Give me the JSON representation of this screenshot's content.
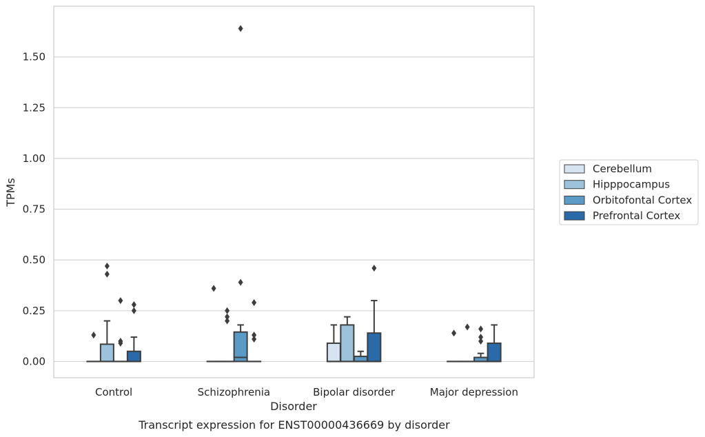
{
  "caption": "Transcript expression for ENST00000436669 by disorder",
  "chart_data": {
    "type": "box",
    "xlabel": "Disorder",
    "ylabel": "TPMs",
    "ylim": [
      -0.08,
      1.75
    ],
    "yticks": [
      0.0,
      0.25,
      0.5,
      0.75,
      1.0,
      1.25,
      1.5
    ],
    "ytick_labels": [
      "0.00",
      "0.25",
      "0.50",
      "0.75",
      "1.00",
      "1.25",
      "1.50"
    ],
    "grid": "horizontal",
    "legend_position": "right",
    "categories": [
      "Control",
      "Schizophrenia",
      "Bipolar disorder",
      "Major depression"
    ],
    "series": [
      {
        "name": "Cerebellum",
        "color": "#d6e3f0",
        "boxes": [
          {
            "category": "Control",
            "q1": 0,
            "median": 0,
            "q3": 0,
            "whisker_low": 0,
            "whisker_high": 0,
            "outliers": [
              0.13
            ]
          },
          {
            "category": "Schizophrenia",
            "q1": 0,
            "median": 0,
            "q3": 0,
            "whisker_low": 0,
            "whisker_high": 0,
            "outliers": [
              0.36
            ]
          },
          {
            "category": "Bipolar disorder",
            "q1": 0,
            "median": 0,
            "q3": 0.09,
            "whisker_low": 0,
            "whisker_high": 0.18,
            "outliers": []
          },
          {
            "category": "Major depression",
            "q1": 0,
            "median": 0,
            "q3": 0,
            "whisker_low": 0,
            "whisker_high": 0,
            "outliers": [
              0.14
            ]
          }
        ]
      },
      {
        "name": "Hipppocampus",
        "color": "#9cc3db",
        "boxes": [
          {
            "category": "Control",
            "q1": 0,
            "median": 0,
            "q3": 0.085,
            "whisker_low": 0,
            "whisker_high": 0.2,
            "outliers": [
              0.43,
              0.47
            ]
          },
          {
            "category": "Schizophrenia",
            "q1": 0,
            "median": 0,
            "q3": 0,
            "whisker_low": 0,
            "whisker_high": 0,
            "outliers": [
              0.2,
              0.22,
              0.25
            ]
          },
          {
            "category": "Bipolar disorder",
            "q1": 0,
            "median": 0,
            "q3": 0.18,
            "whisker_low": 0,
            "whisker_high": 0.22,
            "outliers": []
          },
          {
            "category": "Major depression",
            "q1": 0,
            "median": 0,
            "q3": 0,
            "whisker_low": 0,
            "whisker_high": 0,
            "outliers": [
              0.17
            ]
          }
        ]
      },
      {
        "name": "Orbitofontal Cortex",
        "color": "#5a9ac6",
        "boxes": [
          {
            "category": "Control",
            "q1": 0,
            "median": 0,
            "q3": 0,
            "whisker_low": 0,
            "whisker_high": 0,
            "outliers": [
              0.09,
              0.1,
              0.3
            ]
          },
          {
            "category": "Schizophrenia",
            "q1": 0,
            "median": 0.02,
            "q3": 0.145,
            "whisker_low": 0,
            "whisker_high": 0.18,
            "outliers": [
              0.39,
              1.64
            ]
          },
          {
            "category": "Bipolar disorder",
            "q1": 0,
            "median": 0,
            "q3": 0.025,
            "whisker_low": 0,
            "whisker_high": 0.05,
            "outliers": []
          },
          {
            "category": "Major depression",
            "q1": 0,
            "median": 0,
            "q3": 0.02,
            "whisker_low": 0,
            "whisker_high": 0.04,
            "outliers": [
              0.1,
              0.12,
              0.16
            ]
          }
        ]
      },
      {
        "name": "Prefrontal Cortex",
        "color": "#2a6aa8",
        "boxes": [
          {
            "category": "Control",
            "q1": 0,
            "median": 0,
            "q3": 0.05,
            "whisker_low": 0,
            "whisker_high": 0.12,
            "outliers": [
              0.25,
              0.28
            ]
          },
          {
            "category": "Schizophrenia",
            "q1": 0,
            "median": 0,
            "q3": 0,
            "whisker_low": 0,
            "whisker_high": 0,
            "outliers": [
              0.11,
              0.13,
              0.29
            ]
          },
          {
            "category": "Bipolar disorder",
            "q1": 0,
            "median": 0,
            "q3": 0.14,
            "whisker_low": 0,
            "whisker_high": 0.3,
            "outliers": [
              0.46
            ]
          },
          {
            "category": "Major depression",
            "q1": 0,
            "median": 0,
            "q3": 0.09,
            "whisker_low": 0,
            "whisker_high": 0.18,
            "outliers": []
          }
        ]
      }
    ]
  }
}
